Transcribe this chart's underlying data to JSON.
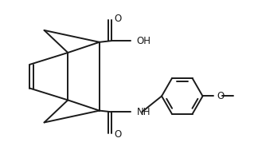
{
  "bg_color": "#ffffff",
  "line_color": "#1a1a1a",
  "text_color": "#1a1a1a",
  "font_size": 8.5,
  "line_width": 1.4,
  "figsize": [
    3.19,
    1.98
  ],
  "dpi": 100,
  "xlim": [
    0,
    9.5
  ],
  "ylim": [
    0,
    6.0
  ]
}
